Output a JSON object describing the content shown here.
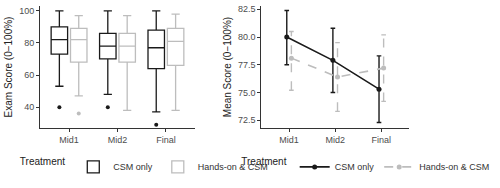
{
  "chart_data": [
    {
      "type": "box",
      "categories": [
        "Mid1",
        "Mid2",
        "Final"
      ],
      "y_label": "Exam Score (0−100%)",
      "ylim": [
        27,
        103
      ],
      "yticks": [
        40,
        60,
        80,
        100
      ],
      "grid": false,
      "legend": "bottom",
      "legend_title": "Treatment",
      "series": [
        {
          "name": "CSM only",
          "color": "#1a1a1a",
          "q1": [
            73,
            70,
            64
          ],
          "median": [
            82,
            78,
            77
          ],
          "q3": [
            90,
            86,
            88
          ],
          "lower": [
            53,
            48,
            37
          ],
          "upper": [
            100,
            100,
            100
          ],
          "outliers": [
            [
              40
            ],
            [
              40
            ],
            [
              29
            ]
          ]
        },
        {
          "name": "Hands-on & CSM",
          "color": "#bdbdbd",
          "q1": [
            68,
            68,
            66
          ],
          "median": [
            82,
            78,
            81
          ],
          "q3": [
            89,
            86,
            89
          ],
          "lower": [
            47,
            38,
            38
          ],
          "upper": [
            97,
            97,
            98
          ],
          "outliers": [
            [
              36
            ],
            [],
            []
          ]
        }
      ]
    },
    {
      "type": "line",
      "categories": [
        "Mid1",
        "Mid2",
        "Final"
      ],
      "y_label": "Mean Score (0−100%)",
      "ylim": [
        71.8,
        82.8
      ],
      "yticks": [
        72.5,
        {
          "value": 75,
          "label": "75.0"
        },
        77.5,
        {
          "value": 80,
          "label": "80.0"
        },
        82.5
      ],
      "grid": false,
      "legend": "bottom",
      "legend_title": "Treatment",
      "series": [
        {
          "name": "CSM only",
          "color": "#1a1a1a",
          "line_style": "solid",
          "marker": "circle",
          "values": [
            80.0,
            77.9,
            75.3
          ],
          "lower": [
            77.5,
            75.0,
            72.3
          ],
          "upper": [
            82.4,
            80.8,
            78.3
          ]
        },
        {
          "name": "Hands-on & CSM",
          "color": "#bdbdbd",
          "line_style": "dash",
          "marker": "circle",
          "values": [
            78.1,
            76.4,
            77.2
          ],
          "lower": [
            75.2,
            73.3,
            74.2
          ],
          "upper": [
            80.5,
            79.5,
            80.2
          ]
        }
      ]
    }
  ]
}
